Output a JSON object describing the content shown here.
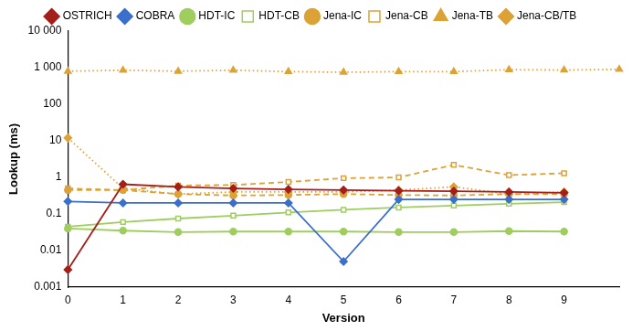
{
  "chart_data": {
    "type": "line",
    "x_label": "Version",
    "y_label": "Lookup (ms)",
    "categories": [
      0,
      1,
      2,
      3,
      4,
      5,
      6,
      7,
      8,
      9,
      null
    ],
    "log": "y",
    "grid": false,
    "legend": "top",
    "ylim": [
      0.001,
      10000
    ],
    "yticks": [
      0.001,
      0.01,
      0.1,
      1,
      10,
      100,
      {
        "value": 1000,
        "label": "1 000"
      },
      {
        "value": 10000,
        "label": "10 000"
      }
    ],
    "series": [
      {
        "name": "OSTRICH",
        "color": "#a31f1a",
        "marker": "diamond",
        "line_style": "solid",
        "values": [
          0.003,
          0.65,
          0.55,
          0.5,
          0.47,
          0.45,
          0.43,
          0.42,
          0.4,
          0.38,
          null
        ]
      },
      {
        "name": "COBRA",
        "color": "#3a6fcb",
        "marker": "diamond",
        "line_style": "solid",
        "values": [
          0.22,
          0.2,
          0.2,
          0.2,
          0.2,
          0.005,
          0.25,
          0.25,
          0.25,
          0.25,
          null
        ]
      },
      {
        "name": "HDT-IC",
        "color": "#9fcd5e",
        "marker": "circle",
        "line_style": "solid",
        "values": [
          0.04,
          0.035,
          0.032,
          0.033,
          0.033,
          0.033,
          0.032,
          0.032,
          0.034,
          0.033,
          null
        ]
      },
      {
        "name": "HDT-CB",
        "color": "#9fcd5e",
        "marker": "open_square",
        "line_style": "solid",
        "values": [
          0.045,
          0.06,
          0.075,
          0.09,
          0.11,
          0.13,
          0.15,
          0.17,
          0.19,
          0.21,
          null
        ]
      },
      {
        "name": "Jena-IC",
        "color": "#dca236",
        "marker": "circle",
        "line_style": "dashed",
        "values": [
          0.45,
          0.45,
          0.35,
          0.32,
          0.33,
          0.35,
          0.33,
          0.32,
          0.35,
          0.35,
          null
        ]
      },
      {
        "name": "Jena-CB",
        "color": "#dca236",
        "marker": "open_square",
        "line_style": "dashed",
        "values": [
          0.5,
          0.45,
          0.6,
          0.62,
          0.75,
          0.95,
          1.0,
          2.2,
          1.15,
          1.3,
          null
        ]
      },
      {
        "name": "Jena-TB",
        "color": "#dca236",
        "marker": "triangle",
        "line_style": "dotted",
        "values": [
          800,
          850,
          800,
          850,
          780,
          750,
          780,
          780,
          880,
          860,
          900
        ]
      },
      {
        "name": "Jena-CB/TB",
        "color": "#dca236",
        "marker": "diamond",
        "line_style": "dotted",
        "values": [
          12,
          0.5,
          0.35,
          0.4,
          0.4,
          0.4,
          0.45,
          0.55,
          0.35,
          0.4,
          null
        ]
      }
    ]
  }
}
